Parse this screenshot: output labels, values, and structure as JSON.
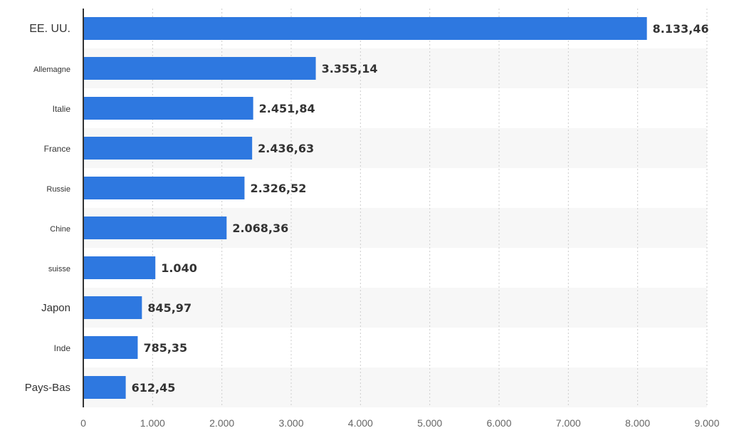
{
  "chart_data": {
    "type": "bar",
    "orientation": "horizontal",
    "categories": [
      "EE. UU.",
      "Allemagne",
      "Italie",
      "France",
      "Russie",
      "Chine",
      "suisse",
      "Japon",
      "Inde",
      "Pays-Bas"
    ],
    "values": [
      8133.46,
      3355.14,
      2451.84,
      2436.63,
      2326.52,
      2068.36,
      1040,
      845.97,
      785.35,
      612.45
    ],
    "value_labels": [
      "8.133,46",
      "3.355,14",
      "2.451,84",
      "2.436,63",
      "2.326,52",
      "2.068,36",
      "1.040",
      "845,97",
      "785,35",
      "612,45"
    ],
    "xlim": [
      0,
      9000
    ],
    "xticks": [
      0,
      1000,
      2000,
      3000,
      4000,
      5000,
      6000,
      7000,
      8000,
      9000
    ],
    "xtick_labels": [
      "0",
      "1.000",
      "2.000",
      "3.000",
      "4.000",
      "5.000",
      "6.000",
      "7.000",
      "8.000",
      "9.000"
    ],
    "title": "",
    "xlabel": "",
    "ylabel": "",
    "grid": "vertical-dotted",
    "legend": "none",
    "colors": {
      "bar": "#2e78e0",
      "band": "#f7f7f7",
      "grid": "#cccccc",
      "axis": "#333333"
    }
  }
}
